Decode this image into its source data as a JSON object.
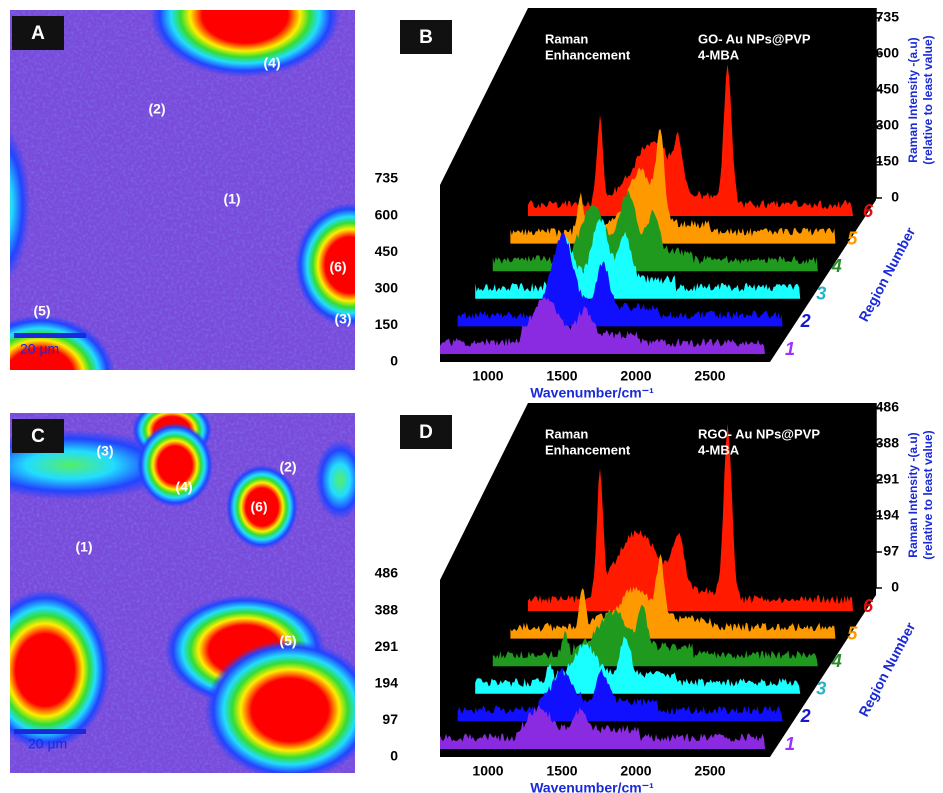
{
  "panels": [
    {
      "label": "A",
      "regions": [
        "(1)",
        "(2)",
        "(3)",
        "(4)",
        "(5)",
        "(6)"
      ],
      "scale_bar": "20 µm"
    },
    {
      "label": "B",
      "annotation": [
        "Raman",
        "Enhancement"
      ],
      "sample": [
        "GO- Au NPs@PVP",
        "4-MBA"
      ],
      "left_ticks": [
        0,
        150,
        300,
        450,
        600,
        735
      ],
      "right_ticks": [
        0,
        150,
        300,
        450,
        600,
        735
      ],
      "x_ticks": [
        1000,
        1500,
        2000,
        2500
      ],
      "x_title": "Wavenumber/cm⁻¹",
      "region_numbers": [
        "1",
        "2",
        "3",
        "4",
        "5",
        "6"
      ],
      "region_axis_title": "Region Number",
      "intensity_title": [
        "Raman Intensity -(a.u)",
        "(relative to least value)"
      ]
    },
    {
      "label": "C",
      "regions": [
        "(1)",
        "(2)",
        "(3)",
        "(4)",
        "(5)",
        "(6)"
      ],
      "scale_bar": "20 µm"
    },
    {
      "label": "D",
      "annotation": [
        "Raman",
        "Enhancement"
      ],
      "sample": [
        "RGO- Au NPs@PVP",
        "4-MBA"
      ],
      "left_ticks": [
        0,
        97,
        194,
        291,
        388,
        486
      ],
      "right_ticks": [
        0,
        97,
        194,
        291,
        388,
        486
      ],
      "x_ticks": [
        1000,
        1500,
        2000,
        2500
      ],
      "x_title": "Wavenumber/cm⁻¹",
      "region_numbers": [
        "1",
        "2",
        "3",
        "4",
        "5",
        "6"
      ],
      "region_axis_title": "Region Number",
      "intensity_title": [
        "Raman Intensity -(a.u)",
        "(relative to least value)"
      ]
    }
  ]
}
